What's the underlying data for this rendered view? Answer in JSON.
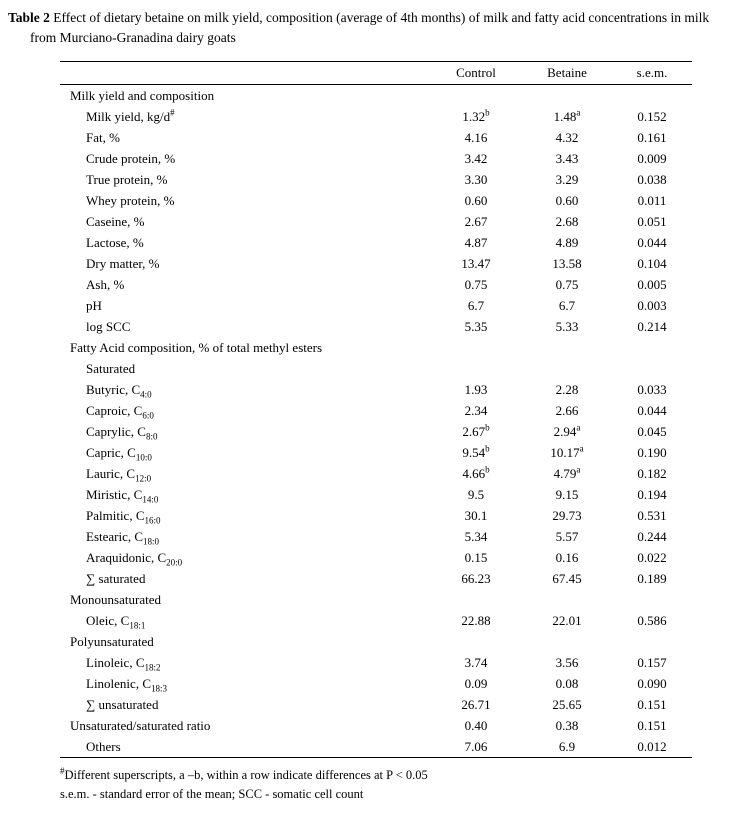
{
  "page": {
    "title_bold": "Table 2",
    "title_rest": " Effect of dietary betaine on milk yield, composition (average of 4th months) of milk and fatty acid concentrations in milk from Murciano-Granadina dairy goats"
  },
  "table": {
    "columns": [
      "",
      "Control",
      "Betaine",
      "s.e.m."
    ],
    "rows": [
      {
        "type": "section",
        "indent": 0,
        "label": "Milk yield and composition"
      },
      {
        "type": "item",
        "indent": 1,
        "label": "Milk yield, kg/d",
        "label_sup": "#",
        "control": "1.32",
        "control_sup": "b",
        "betaine": "1.48",
        "betaine_sup": "a",
        "sem": "0.152"
      },
      {
        "type": "item",
        "indent": 1,
        "label": "Fat, %",
        "control": "4.16",
        "betaine": "4.32",
        "sem": "0.161"
      },
      {
        "type": "item",
        "indent": 1,
        "label": "Crude protein, %",
        "control": "3.42",
        "betaine": "3.43",
        "sem": "0.009"
      },
      {
        "type": "item",
        "indent": 1,
        "label": "True protein, %",
        "control": "3.30",
        "betaine": "3.29",
        "sem": "0.038"
      },
      {
        "type": "item",
        "indent": 1,
        "label": "Whey protein, %",
        "control": "0.60",
        "betaine": "0.60",
        "sem": "0.011"
      },
      {
        "type": "item",
        "indent": 1,
        "label": "Caseine, %",
        "control": "2.67",
        "betaine": "2.68",
        "sem": "0.051"
      },
      {
        "type": "item",
        "indent": 1,
        "label": "Lactose, %",
        "control": "4.87",
        "betaine": "4.89",
        "sem": "0.044"
      },
      {
        "type": "item",
        "indent": 1,
        "label": "Dry matter, %",
        "control": "13.47",
        "betaine": "13.58",
        "sem": "0.104"
      },
      {
        "type": "item",
        "indent": 1,
        "label": "Ash, %",
        "control": "0.75",
        "betaine": "0.75",
        "sem": "0.005"
      },
      {
        "type": "item",
        "indent": 1,
        "label": "pH",
        "control": "6.7",
        "betaine": "6.7",
        "sem": "0.003"
      },
      {
        "type": "item",
        "indent": 1,
        "label": "log SCC",
        "control": "5.35",
        "betaine": "5.33",
        "sem": "0.214"
      },
      {
        "type": "section",
        "indent": 0,
        "label": "Fatty Acid composition, % of total methyl esters"
      },
      {
        "type": "section",
        "indent": 1,
        "label": "Saturated"
      },
      {
        "type": "item",
        "indent": 1,
        "label": "Butyric, C",
        "label_sub": "4:0",
        "control": "1.93",
        "betaine": "2.28",
        "sem": "0.033"
      },
      {
        "type": "item",
        "indent": 1,
        "label": "Caproic, C",
        "label_sub": "6:0",
        "control": "2.34",
        "betaine": "2.66",
        "sem": "0.044"
      },
      {
        "type": "item",
        "indent": 1,
        "label": "Caprylic, C",
        "label_sub": "8:0",
        "control": "2.67",
        "control_sup": "b",
        "betaine": "2.94",
        "betaine_sup": "a",
        "sem": "0.045"
      },
      {
        "type": "item",
        "indent": 1,
        "label": "Capric, C",
        "label_sub": "10:0",
        "control": "9.54",
        "control_sup": "b",
        "betaine": "10.17",
        "betaine_sup": "a",
        "sem": "0.190"
      },
      {
        "type": "item",
        "indent": 1,
        "label": "Lauric, C",
        "label_sub": "12:0",
        "control": "4.66",
        "control_sup": "b",
        "betaine": "4.79",
        "betaine_sup": "a",
        "sem": "0.182"
      },
      {
        "type": "item",
        "indent": 1,
        "label": "Miristic, C",
        "label_sub": "14:0",
        "control": "9.5",
        "betaine": "9.15",
        "sem": "0.194"
      },
      {
        "type": "item",
        "indent": 1,
        "label": "Palmitic, C",
        "label_sub": "16:0",
        "control": "30.1",
        "betaine": "29.73",
        "sem": "0.531"
      },
      {
        "type": "item",
        "indent": 1,
        "label": "Estearic, C",
        "label_sub": "18:0",
        "control": "5.34",
        "betaine": "5.57",
        "sem": "0.244"
      },
      {
        "type": "item",
        "indent": 1,
        "label": "Araquidonic, C",
        "label_sub": "20:0",
        "control": "0.15",
        "betaine": "0.16",
        "sem": "0.022"
      },
      {
        "type": "item",
        "indent": 1,
        "label": "∑ saturated",
        "control": "66.23",
        "betaine": "67.45",
        "sem": "0.189"
      },
      {
        "type": "section",
        "indent": 0,
        "label": "Monounsaturated"
      },
      {
        "type": "item",
        "indent": 1,
        "label": "Oleic, C",
        "label_sub": "18:1",
        "control": "22.88",
        "betaine": "22.01",
        "sem": "0.586"
      },
      {
        "type": "section",
        "indent": 0,
        "label": "Polyunsaturated"
      },
      {
        "type": "item",
        "indent": 1,
        "label": "Linoleic, C",
        "label_sub": "18:2",
        "control": "3.74",
        "betaine": "3.56",
        "sem": "0.157"
      },
      {
        "type": "item",
        "indent": 1,
        "label": "Linolenic, C",
        "label_sub": "18:3",
        "control": "0.09",
        "betaine": "0.08",
        "sem": "0.090"
      },
      {
        "type": "item",
        "indent": 1,
        "label": "∑ unsaturated",
        "control": "26.71",
        "betaine": "25.65",
        "sem": "0.151"
      },
      {
        "type": "item",
        "indent": 0,
        "label": "Unsaturated/saturated ratio",
        "control": "0.40",
        "betaine": "0.38",
        "sem": "0.151"
      },
      {
        "type": "item",
        "indent": 1,
        "label": "Others",
        "control": "7.06",
        "betaine": "6.9",
        "sem": "0.012"
      }
    ]
  },
  "footnotes": [
    {
      "sup": "#",
      "text": "Different superscripts, a –b,  within a row indicate differences at P < 0.05"
    },
    {
      "sup": "",
      "text": "s.e.m. - standard error of the mean;  SCC - somatic cell count"
    }
  ]
}
